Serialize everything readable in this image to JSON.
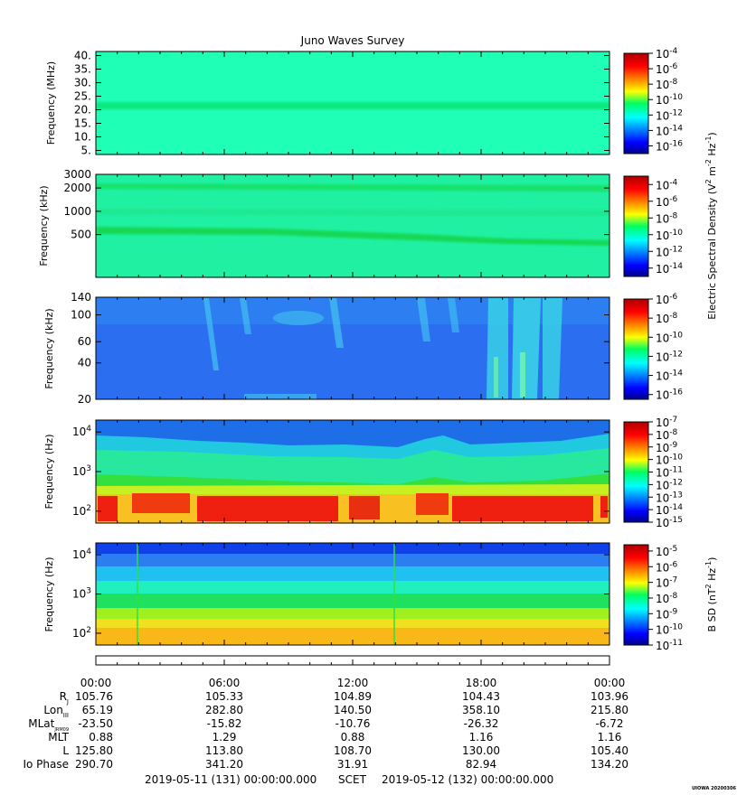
{
  "title": "Juno Waves Survey",
  "chart_data": [
    {
      "type": "heatmap",
      "ylabel": "Frequency (MHz)",
      "ylim": [
        3.5,
        41.5
      ],
      "yscale": "linear",
      "yticks": [
        "40.",
        "35.",
        "30.",
        "25.",
        "20.",
        "15.",
        "10.",
        "5."
      ],
      "ytick_values": [
        40,
        35,
        30,
        25,
        20,
        15,
        10,
        5
      ],
      "colorbar": {
        "scale": "log",
        "range_exp": [
          -17,
          -4
        ],
        "labels": [
          {
            "base": "10",
            "exp": "-4"
          },
          {
            "base": "10",
            "exp": "-6"
          },
          {
            "base": "10",
            "exp": "-8"
          },
          {
            "base": "10",
            "exp": "-10"
          },
          {
            "base": "10",
            "exp": "-12"
          },
          {
            "base": "10",
            "exp": "-14"
          },
          {
            "base": "10",
            "exp": "-16"
          }
        ],
        "label_exps": [
          -4,
          -6,
          -8,
          -10,
          -12,
          -14,
          -16
        ]
      }
    },
    {
      "type": "heatmap",
      "ylabel": "Frequency (kHz)",
      "ylim": [
        140,
        3000
      ],
      "yscale": "log",
      "yticks": [
        "3000",
        "2000",
        "1000",
        "500"
      ],
      "ytick_values": [
        3000,
        2000,
        1000,
        500
      ],
      "colorbar": {
        "scale": "log",
        "range_exp": [
          -15,
          -3
        ],
        "labels": [
          {
            "base": "10",
            "exp": "-4"
          },
          {
            "base": "10",
            "exp": "-6"
          },
          {
            "base": "10",
            "exp": "-8"
          },
          {
            "base": "10",
            "exp": "-10"
          },
          {
            "base": "10",
            "exp": "-12"
          },
          {
            "base": "10",
            "exp": "-14"
          }
        ],
        "label_exps": [
          -4,
          -6,
          -8,
          -10,
          -12,
          -14
        ],
        "title_parts": [
          "Electric Spectral Density (V",
          "2",
          " m",
          "-2",
          " Hz",
          "-1",
          ")"
        ]
      }
    },
    {
      "type": "heatmap",
      "ylabel": "Frequency (kHz)",
      "ylim": [
        20,
        140
      ],
      "yscale": "log",
      "yticks": [
        "140",
        "100",
        "60",
        "40",
        "20"
      ],
      "ytick_values": [
        140,
        100,
        60,
        40,
        20
      ],
      "colorbar": {
        "scale": "log",
        "range_exp": [
          -16.5,
          -6
        ],
        "labels": [
          {
            "base": "10",
            "exp": "-6"
          },
          {
            "base": "10",
            "exp": "-8"
          },
          {
            "base": "10",
            "exp": "-10"
          },
          {
            "base": "10",
            "exp": "-12"
          },
          {
            "base": "10",
            "exp": "-14"
          },
          {
            "base": "10",
            "exp": "-16"
          }
        ],
        "label_exps": [
          -6,
          -8,
          -10,
          -12,
          -14,
          -16
        ]
      }
    },
    {
      "type": "heatmap",
      "ylabel": "Frequency (Hz)",
      "ylim": [
        50,
        20000
      ],
      "yscale": "log",
      "yticks": [
        {
          "base": "10",
          "exp": "4"
        },
        {
          "base": "10",
          "exp": "3"
        },
        {
          "base": "10",
          "exp": "2"
        }
      ],
      "ytick_values": [
        10000,
        1000,
        100
      ],
      "colorbar": {
        "scale": "log",
        "range_exp": [
          -15,
          -7
        ],
        "labels": [
          {
            "base": "10",
            "exp": "-7"
          },
          {
            "base": "10",
            "exp": "-8"
          },
          {
            "base": "10",
            "exp": "-9"
          },
          {
            "base": "10",
            "exp": "-10"
          },
          {
            "base": "10",
            "exp": "-11"
          },
          {
            "base": "10",
            "exp": "-12"
          },
          {
            "base": "10",
            "exp": "-13"
          },
          {
            "base": "10",
            "exp": "-14"
          },
          {
            "base": "10",
            "exp": "-15"
          }
        ],
        "label_exps": [
          -7,
          -8,
          -9,
          -10,
          -11,
          -12,
          -13,
          -14,
          -15
        ]
      }
    },
    {
      "type": "heatmap",
      "ylabel": "Frequency (Hz)",
      "ylim": [
        50,
        20000
      ],
      "yscale": "log",
      "yticks": [
        {
          "base": "10",
          "exp": "4"
        },
        {
          "base": "10",
          "exp": "3"
        },
        {
          "base": "10",
          "exp": "2"
        }
      ],
      "ytick_values": [
        10000,
        1000,
        100
      ],
      "colorbar": {
        "scale": "log",
        "range_exp": [
          -11,
          -4.6
        ],
        "labels": [
          {
            "base": "10",
            "exp": "-5"
          },
          {
            "base": "10",
            "exp": "-6"
          },
          {
            "base": "10",
            "exp": "-7"
          },
          {
            "base": "10",
            "exp": "-8"
          },
          {
            "base": "10",
            "exp": "-9"
          },
          {
            "base": "10",
            "exp": "-10"
          },
          {
            "base": "10",
            "exp": "-11"
          }
        ],
        "label_exps": [
          -5,
          -6,
          -7,
          -8,
          -9,
          -10,
          -11
        ],
        "title_parts": [
          "B SD (nT",
          "2",
          " Hz",
          "-1",
          ")"
        ]
      }
    }
  ],
  "x_axis": {
    "ticks": [
      "00:00",
      "06:00",
      "12:00",
      "18:00",
      "00:00"
    ],
    "tick_hours": [
      0,
      6,
      12,
      18,
      24
    ],
    "range_hours": [
      0,
      24
    ]
  },
  "ephemeris": {
    "labels": {
      "rj": {
        "main": "R",
        "sub": "J"
      },
      "lon": {
        "main": "Lon",
        "sub": "III"
      },
      "mlat": {
        "main": "MLat",
        "sub": "JRM09"
      },
      "mlt": {
        "main": "MLT"
      },
      "l": {
        "main": "L"
      },
      "io": {
        "main": "Io Phase"
      }
    },
    "rows": [
      {
        "key": "rj",
        "values": [
          "105.76",
          "105.33",
          "104.89",
          "104.43",
          "103.96"
        ]
      },
      {
        "key": "lon",
        "values": [
          "65.19",
          "282.80",
          "140.50",
          "358.10",
          "215.80"
        ]
      },
      {
        "key": "mlat",
        "values": [
          "-23.50",
          "-15.82",
          "-10.76",
          "-26.32",
          "-6.72"
        ]
      },
      {
        "key": "mlt",
        "values": [
          "0.88",
          "1.29",
          "0.88",
          "1.16",
          "1.16"
        ]
      },
      {
        "key": "l",
        "values": [
          "125.80",
          "113.80",
          "108.70",
          "130.00",
          "105.40"
        ]
      },
      {
        "key": "io",
        "values": [
          "290.70",
          "341.20",
          "31.91",
          "82.94",
          "134.20"
        ]
      }
    ]
  },
  "footer": {
    "start": "2019-05-11 (131) 00:00:00.000",
    "scet": "SCET",
    "end": "2019-05-12 (132) 00:00:00.000",
    "credit": "UIOWA 20200306"
  }
}
